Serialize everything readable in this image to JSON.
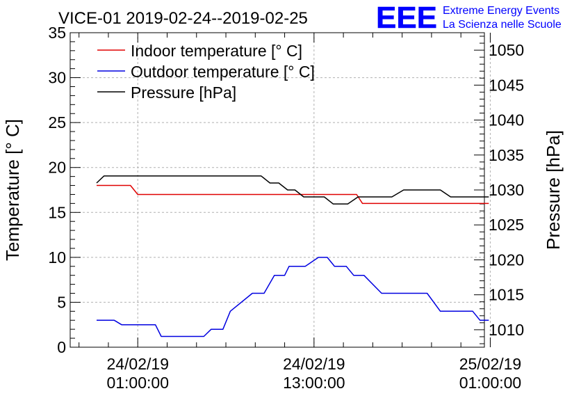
{
  "chart_data": {
    "type": "line",
    "title": "VICE-01 2019-02-24--2019-02-25",
    "ylabel_left": "Temperature [° C]",
    "ylabel_right": "Pressure [hPa]",
    "xlabel": "",
    "grid": true,
    "legend_position": "top-left",
    "ylim_left": [
      0,
      35
    ],
    "ylim_right": [
      1007.5,
      1052.5
    ],
    "xlim_hours": [
      -4.6,
      23.6
    ],
    "x_ticks": [
      {
        "hour": 0,
        "label_line1": "24/02/19",
        "label_line2": "01:00:00"
      },
      {
        "hour": 12,
        "label_line1": "24/02/19",
        "label_line2": "13:00:00"
      },
      {
        "hour": 24,
        "label_line1": "25/02/19",
        "label_line2": "01:00:00"
      }
    ],
    "y_ticks_left": [
      "0",
      "5",
      "10",
      "15",
      "20",
      "25",
      "30",
      "35"
    ],
    "y_ticks_right": [
      "1010",
      "1015",
      "1020",
      "1025",
      "1030",
      "1035",
      "1040",
      "1045",
      "1050"
    ],
    "series": [
      {
        "name": "Indoor temperature [° C]",
        "color": "#e00000",
        "axis": "left",
        "points": [
          [
            -2.8,
            18
          ],
          [
            -0.5,
            18
          ],
          [
            0,
            17
          ],
          [
            3,
            17
          ],
          [
            6,
            17
          ],
          [
            9,
            17
          ],
          [
            11,
            17
          ],
          [
            14.9,
            17
          ],
          [
            15.3,
            16
          ],
          [
            18,
            16
          ],
          [
            21,
            16
          ],
          [
            23.9,
            16
          ]
        ]
      },
      {
        "name": "Outdoor temperature [° C]",
        "color": "#0000e0",
        "axis": "left",
        "points": [
          [
            -2.8,
            3
          ],
          [
            -1.6,
            3
          ],
          [
            -1.1,
            2.5
          ],
          [
            1.2,
            2.5
          ],
          [
            1.6,
            1.2
          ],
          [
            4.5,
            1.2
          ],
          [
            5.0,
            2
          ],
          [
            5.8,
            2
          ],
          [
            6.3,
            4
          ],
          [
            7.8,
            6
          ],
          [
            8.6,
            6
          ],
          [
            9.3,
            8
          ],
          [
            10.0,
            8
          ],
          [
            10.3,
            9
          ],
          [
            11.4,
            9
          ],
          [
            12.3,
            10
          ],
          [
            12.9,
            10
          ],
          [
            13.4,
            9
          ],
          [
            14.2,
            9
          ],
          [
            14.7,
            8
          ],
          [
            15.4,
            8
          ],
          [
            16.6,
            6
          ],
          [
            19.7,
            6
          ],
          [
            20.6,
            4
          ],
          [
            22.8,
            4
          ],
          [
            23.3,
            3
          ],
          [
            23.9,
            3
          ]
        ]
      },
      {
        "name": "Pressure [hPa]",
        "color": "#000000",
        "axis": "right",
        "points": [
          [
            -2.8,
            1031
          ],
          [
            -2.3,
            1032
          ],
          [
            3,
            1032
          ],
          [
            6,
            1032
          ],
          [
            8.4,
            1032
          ],
          [
            9.0,
            1031
          ],
          [
            9.6,
            1031
          ],
          [
            10.2,
            1030
          ],
          [
            10.7,
            1030
          ],
          [
            11.3,
            1029
          ],
          [
            12.7,
            1029
          ],
          [
            13.3,
            1028
          ],
          [
            14.3,
            1028
          ],
          [
            15.0,
            1029
          ],
          [
            17.3,
            1029
          ],
          [
            18.1,
            1030
          ],
          [
            20.6,
            1030
          ],
          [
            21.3,
            1029
          ],
          [
            23.9,
            1029
          ]
        ]
      }
    ]
  },
  "logo": {
    "mark": "EEE",
    "line1": "Extreme Energy Events",
    "line2": "La Scienza nelle Scuole",
    "color": "#0000ff"
  }
}
